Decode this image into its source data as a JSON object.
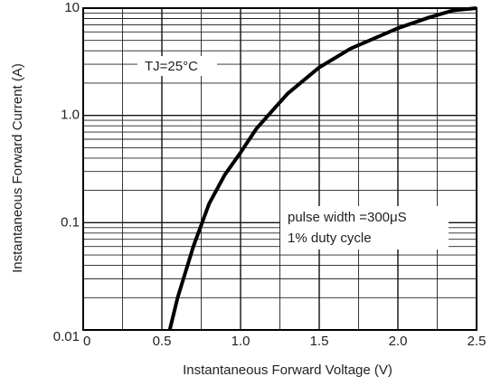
{
  "chart_data": {
    "type": "line",
    "x_label": "Instantaneous Forward Voltage (V)",
    "y_label": "Instantaneous Forward Current (A)",
    "annotations": [
      "TJ=25°C",
      "pulse width =300μS",
      "1% duty cycle"
    ],
    "series": [
      {
        "color": "#000000",
        "x": [
          0.55,
          0.6,
          0.7,
          0.8,
          0.9,
          1.0,
          1.1,
          1.2,
          1.3,
          1.5,
          1.7,
          2.0,
          2.2,
          2.35,
          2.5
        ],
        "values": [
          0.01,
          0.02,
          0.06,
          0.15,
          0.28,
          0.45,
          0.75,
          1.1,
          1.6,
          2.8,
          4.2,
          6.5,
          8.2,
          9.5,
          10
        ]
      }
    ],
    "xlim": [
      0,
      2.5
    ],
    "xticks": [
      0,
      0.5,
      {
        "value": 1,
        "label": "1.0"
      },
      1.5,
      {
        "value": 2,
        "label": "2.0"
      },
      2.5
    ],
    "x_minor_grid": [
      0.25,
      0.75,
      1.25,
      1.75,
      2.25
    ],
    "ylim": [
      0.01,
      10
    ],
    "yticks": [
      0.01,
      0.1,
      {
        "value": 1,
        "label": "1.0"
      },
      10
    ],
    "y_log": true,
    "grid": true,
    "log_minor_grid": true
  }
}
